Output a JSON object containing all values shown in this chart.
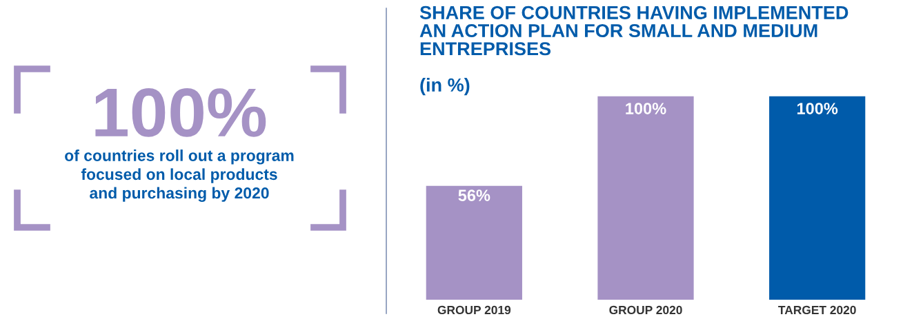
{
  "chart_data": [
    {
      "type": "other",
      "title": "100%",
      "subtitle": "of countries roll out a program\nfocused on local products\nand purchasing by 2020",
      "color": "#a592c5"
    },
    {
      "type": "bar",
      "title": "SHARE OF COUNTRIES HAVING IMPLEMENTED\nAN ACTION PLAN FOR SMALL AND MEDIUM\nENTREPRISES",
      "subtitle": "(in %)",
      "categories": [
        "GROUP 2019",
        "GROUP 2020",
        "TARGET 2020"
      ],
      "values": [
        56,
        100,
        100
      ],
      "colors": [
        "#a592c5",
        "#a592c5",
        "#005baa"
      ],
      "value_labels": [
        "56%",
        "100%",
        "100%"
      ]
    }
  ]
}
